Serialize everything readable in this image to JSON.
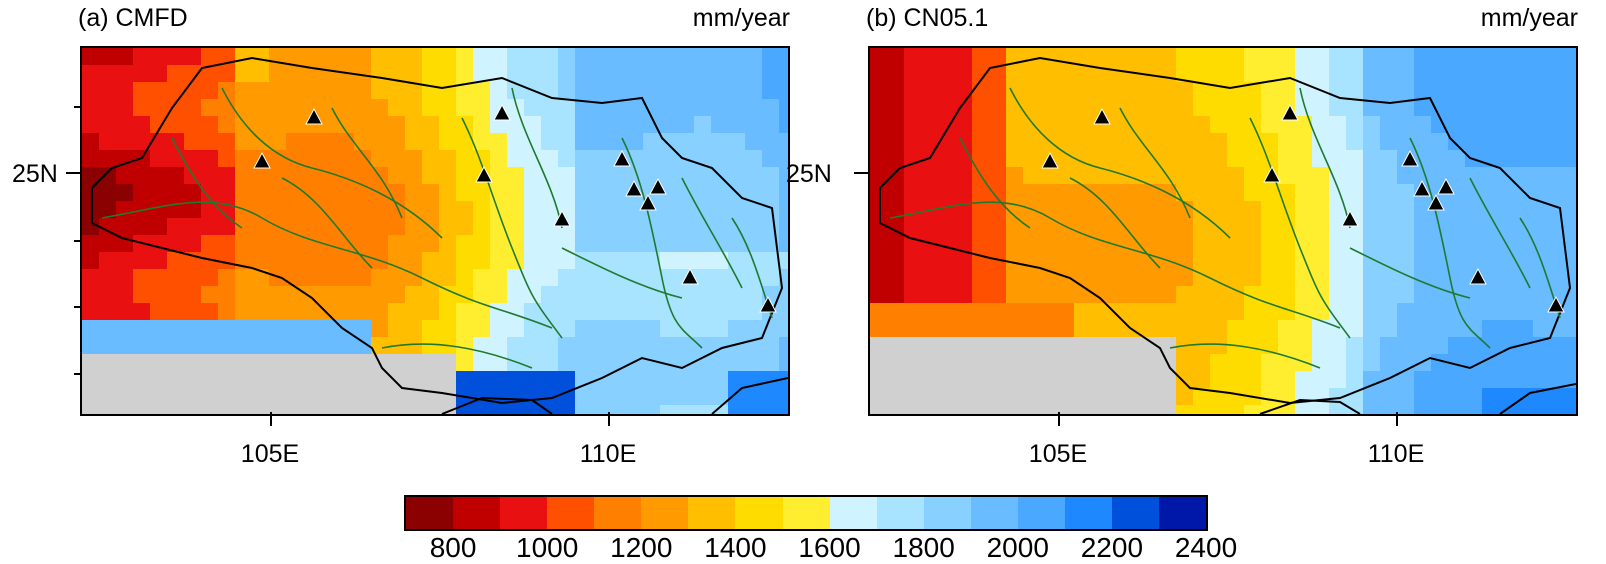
{
  "panels": [
    {
      "label": "(a) CMFD",
      "units": "mm/year"
    },
    {
      "label": "(b) CN05.1",
      "units": "mm/year"
    }
  ],
  "axes": {
    "x_ticks": [
      "105E",
      "110E"
    ],
    "y_ticks": [
      "25N"
    ]
  },
  "colorbar": {
    "colors": [
      "#8b0000",
      "#c00000",
      "#e81010",
      "#ff5000",
      "#ff8000",
      "#ff9a00",
      "#ffbe00",
      "#ffdc00",
      "#ffee30",
      "#d0f4ff",
      "#a8e4ff",
      "#88d0ff",
      "#68bcff",
      "#4aa8ff",
      "#1e88ff",
      "#0050dc",
      "#0018a8"
    ],
    "labels": [
      "800",
      "1000",
      "1200",
      "1400",
      "1600",
      "1800",
      "2000",
      "2200",
      "2400"
    ]
  },
  "colors": {
    "river": "#1f7a2e",
    "boundary": "#000000",
    "missing": "#d0d0d0"
  },
  "stations": "triangle-marker"
}
